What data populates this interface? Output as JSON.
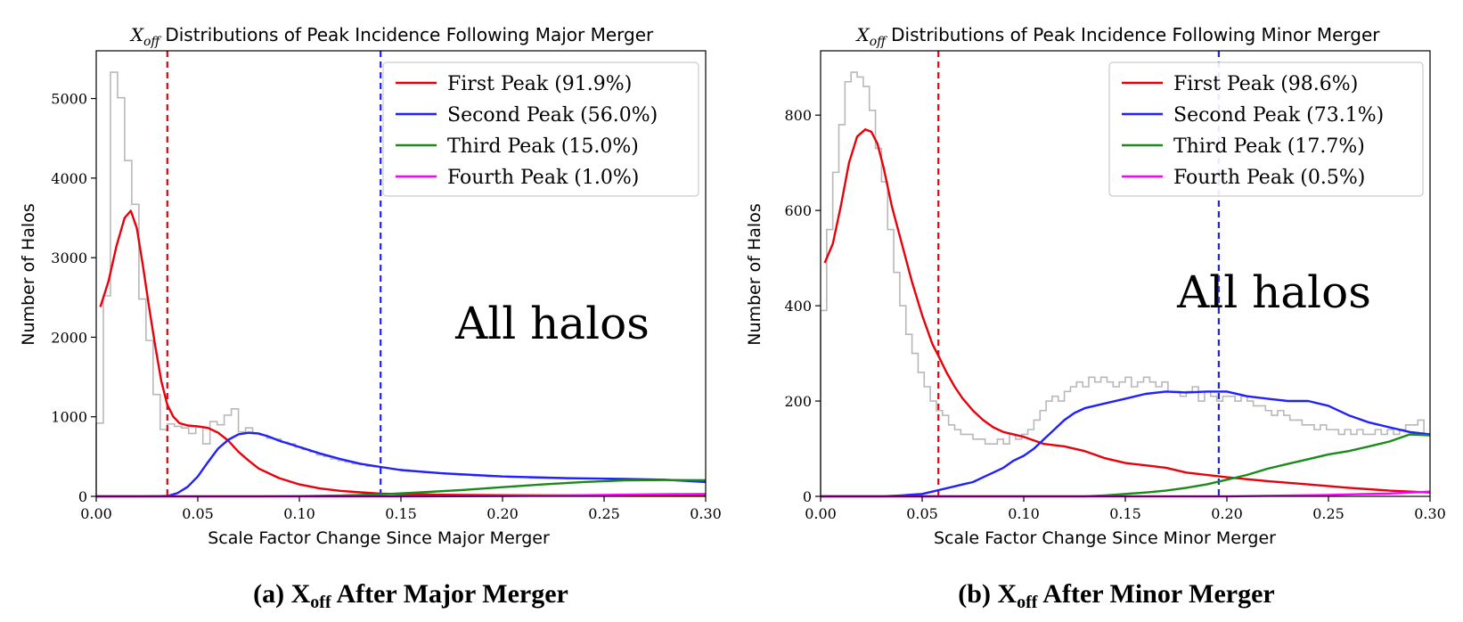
{
  "chart_data": [
    {
      "type": "line",
      "title_symbol": "X",
      "title_symbol_sub": "off",
      "title": "Distributions of Peak Incidence Following Major Merger",
      "xlabel": "Scale Factor Change Since Major Merger",
      "ylabel": "Number of Halos",
      "xlim": [
        0.0,
        0.3
      ],
      "ylim": [
        0,
        5600
      ],
      "xticks": [
        0.0,
        0.05,
        0.1,
        0.15,
        0.2,
        0.25,
        0.3
      ],
      "xtick_labels": [
        "0.00",
        "0.05",
        "0.10",
        "0.15",
        "0.20",
        "0.25",
        "0.30"
      ],
      "yticks": [
        0,
        1000,
        2000,
        3000,
        4000,
        5000
      ],
      "ytick_labels": [
        "0",
        "1000",
        "2000",
        "3000",
        "4000",
        "5000"
      ],
      "legend_position": "top-right",
      "annotation": "All halos",
      "caption_prefix": "(a) X",
      "caption_sub": "off",
      "caption_suffix": " After Major Merger",
      "vlines": [
        {
          "x": 0.035,
          "color": "#e8000b"
        },
        {
          "x": 0.14,
          "color": "#1f1fff"
        }
      ],
      "histogram": {
        "color": "#b8b8b8",
        "bin_width": 0.0035,
        "x_start": 0.0,
        "values": [
          920,
          2520,
          5330,
          5010,
          4220,
          3670,
          2480,
          1960,
          1280,
          840,
          910,
          880,
          860,
          790,
          870,
          660,
          940,
          900,
          1020,
          1100,
          810,
          860,
          790,
          770,
          730,
          720,
          680,
          660,
          620,
          590,
          560,
          520,
          500,
          470,
          450,
          430,
          410,
          400,
          380,
          370,
          360,
          350,
          340,
          330,
          320,
          310,
          300,
          300,
          290,
          280,
          280,
          270,
          270,
          260,
          260,
          250,
          250,
          250,
          240,
          240,
          240,
          230,
          230,
          230,
          230,
          230,
          220,
          220,
          220,
          220,
          220,
          220,
          220,
          210,
          210,
          210,
          210,
          210,
          210,
          210,
          210,
          210,
          210,
          210,
          210,
          210
        ]
      },
      "series": [
        {
          "name": "First Peak  (91.9%)",
          "color": "#e8000b",
          "x": [
            0.002,
            0.006,
            0.01,
            0.014,
            0.017,
            0.02,
            0.023,
            0.026,
            0.029,
            0.032,
            0.035,
            0.038,
            0.041,
            0.045,
            0.05,
            0.055,
            0.06,
            0.065,
            0.07,
            0.075,
            0.08,
            0.09,
            0.1,
            0.11,
            0.12,
            0.13,
            0.14,
            0.15,
            0.17,
            0.2,
            0.23,
            0.26,
            0.3
          ],
          "y": [
            2380,
            2700,
            3150,
            3500,
            3590,
            3370,
            2900,
            2380,
            1900,
            1450,
            1150,
            1000,
            920,
            890,
            880,
            860,
            800,
            700,
            560,
            450,
            350,
            230,
            150,
            100,
            70,
            50,
            35,
            28,
            20,
            15,
            12,
            10,
            8
          ]
        },
        {
          "name": "Second Peak (56.0%)",
          "color": "#1f1fff",
          "x": [
            0.0,
            0.02,
            0.035,
            0.04,
            0.045,
            0.05,
            0.055,
            0.06,
            0.065,
            0.07,
            0.075,
            0.08,
            0.085,
            0.09,
            0.1,
            0.11,
            0.12,
            0.13,
            0.14,
            0.15,
            0.17,
            0.2,
            0.23,
            0.26,
            0.28,
            0.3
          ],
          "y": [
            0,
            0,
            5,
            40,
            120,
            250,
            430,
            600,
            710,
            780,
            800,
            790,
            750,
            700,
            620,
            540,
            470,
            410,
            370,
            330,
            290,
            250,
            230,
            220,
            210,
            180
          ]
        },
        {
          "name": "Third Peak (15.0%)",
          "color": "#1a8a1a",
          "x": [
            0.0,
            0.08,
            0.1,
            0.12,
            0.14,
            0.16,
            0.18,
            0.2,
            0.22,
            0.24,
            0.26,
            0.28,
            0.3
          ],
          "y": [
            0,
            0,
            3,
            10,
            25,
            50,
            80,
            115,
            150,
            180,
            200,
            205,
            200
          ]
        },
        {
          "name": "Fourth Peak (1.0%)",
          "color": "#ff00ff",
          "x": [
            0.0,
            0.15,
            0.2,
            0.24,
            0.27,
            0.3
          ],
          "y": [
            0,
            0,
            5,
            15,
            25,
            30
          ]
        }
      ]
    },
    {
      "type": "line",
      "title_symbol": "X",
      "title_symbol_sub": "off",
      "title": "Distributions of Peak Incidence Following Minor Merger",
      "xlabel": "Scale Factor Change Since Minor Merger",
      "ylabel": "Number of Halos",
      "xlim": [
        0.0,
        0.3
      ],
      "ylim": [
        0,
        935
      ],
      "xticks": [
        0.0,
        0.05,
        0.1,
        0.15,
        0.2,
        0.25,
        0.3
      ],
      "xtick_labels": [
        "0.00",
        "0.05",
        "0.10",
        "0.15",
        "0.20",
        "0.25",
        "0.30"
      ],
      "yticks": [
        0,
        200,
        400,
        600,
        800
      ],
      "ytick_labels": [
        "0",
        "200",
        "400",
        "600",
        "800"
      ],
      "legend_position": "top-right",
      "annotation": "All halos",
      "caption_prefix": "(b) X",
      "caption_sub": "off",
      "caption_suffix": " After Minor Merger",
      "vlines": [
        {
          "x": 0.058,
          "color": "#e8000b"
        },
        {
          "x": 0.196,
          "color": "#1f1fff"
        }
      ],
      "histogram": {
        "color": "#b8b8b8",
        "bin_width": 0.003,
        "x_start": 0.0,
        "values": [
          390,
          560,
          680,
          780,
          870,
          890,
          880,
          860,
          810,
          730,
          660,
          560,
          470,
          400,
          340,
          300,
          260,
          230,
          200,
          180,
          170,
          150,
          140,
          130,
          130,
          120,
          120,
          110,
          110,
          120,
          110,
          130,
          120,
          130,
          140,
          160,
          180,
          200,
          210,
          200,
          220,
          230,
          240,
          230,
          250,
          240,
          250,
          240,
          230,
          240,
          250,
          230,
          240,
          250,
          240,
          230,
          240,
          220,
          220,
          210,
          220,
          230,
          200,
          220,
          210,
          200,
          210,
          210,
          200,
          210,
          200,
          190,
          190,
          180,
          170,
          180,
          170,
          160,
          160,
          150,
          150,
          140,
          150,
          140,
          140,
          130,
          140,
          130,
          140,
          130,
          130,
          140,
          130,
          140,
          130,
          140,
          150,
          150,
          160,
          130
        ]
      },
      "series": [
        {
          "name": "First Peak  (98.6%)",
          "color": "#e8000b",
          "x": [
            0.002,
            0.006,
            0.01,
            0.014,
            0.018,
            0.022,
            0.025,
            0.028,
            0.031,
            0.035,
            0.04,
            0.045,
            0.05,
            0.055,
            0.058,
            0.062,
            0.066,
            0.07,
            0.075,
            0.08,
            0.085,
            0.09,
            0.1,
            0.11,
            0.12,
            0.13,
            0.14,
            0.15,
            0.16,
            0.17,
            0.18,
            0.19,
            0.2,
            0.22,
            0.24,
            0.26,
            0.28,
            0.3
          ],
          "y": [
            490,
            530,
            610,
            700,
            755,
            770,
            765,
            740,
            690,
            610,
            530,
            450,
            380,
            320,
            295,
            260,
            230,
            205,
            180,
            160,
            145,
            135,
            125,
            110,
            105,
            95,
            80,
            70,
            65,
            60,
            50,
            45,
            40,
            32,
            25,
            18,
            12,
            8
          ]
        },
        {
          "name": "Second Peak (73.1%)",
          "color": "#1f1fff",
          "x": [
            0.0,
            0.03,
            0.04,
            0.05,
            0.055,
            0.06,
            0.065,
            0.07,
            0.075,
            0.08,
            0.085,
            0.09,
            0.095,
            0.1,
            0.105,
            0.11,
            0.115,
            0.12,
            0.125,
            0.13,
            0.14,
            0.15,
            0.16,
            0.17,
            0.18,
            0.19,
            0.2,
            0.21,
            0.22,
            0.23,
            0.24,
            0.25,
            0.26,
            0.27,
            0.28,
            0.29,
            0.3
          ],
          "y": [
            0,
            0,
            2,
            5,
            10,
            15,
            20,
            25,
            30,
            40,
            50,
            60,
            75,
            85,
            100,
            120,
            140,
            160,
            175,
            185,
            195,
            205,
            215,
            220,
            218,
            220,
            220,
            210,
            205,
            200,
            200,
            190,
            170,
            155,
            145,
            135,
            130
          ]
        },
        {
          "name": "Third Peak (17.7%)",
          "color": "#1a8a1a",
          "x": [
            0.0,
            0.13,
            0.14,
            0.15,
            0.16,
            0.17,
            0.18,
            0.19,
            0.2,
            0.21,
            0.22,
            0.23,
            0.24,
            0.25,
            0.26,
            0.27,
            0.28,
            0.29,
            0.3
          ],
          "y": [
            0,
            0,
            2,
            5,
            8,
            12,
            18,
            25,
            35,
            45,
            58,
            68,
            78,
            88,
            95,
            105,
            115,
            130,
            128
          ]
        },
        {
          "name": "Fourth Peak (0.5%)",
          "color": "#ff00ff",
          "x": [
            0.0,
            0.2,
            0.25,
            0.28,
            0.3
          ],
          "y": [
            0,
            0,
            3,
            6,
            10
          ]
        }
      ]
    }
  ]
}
